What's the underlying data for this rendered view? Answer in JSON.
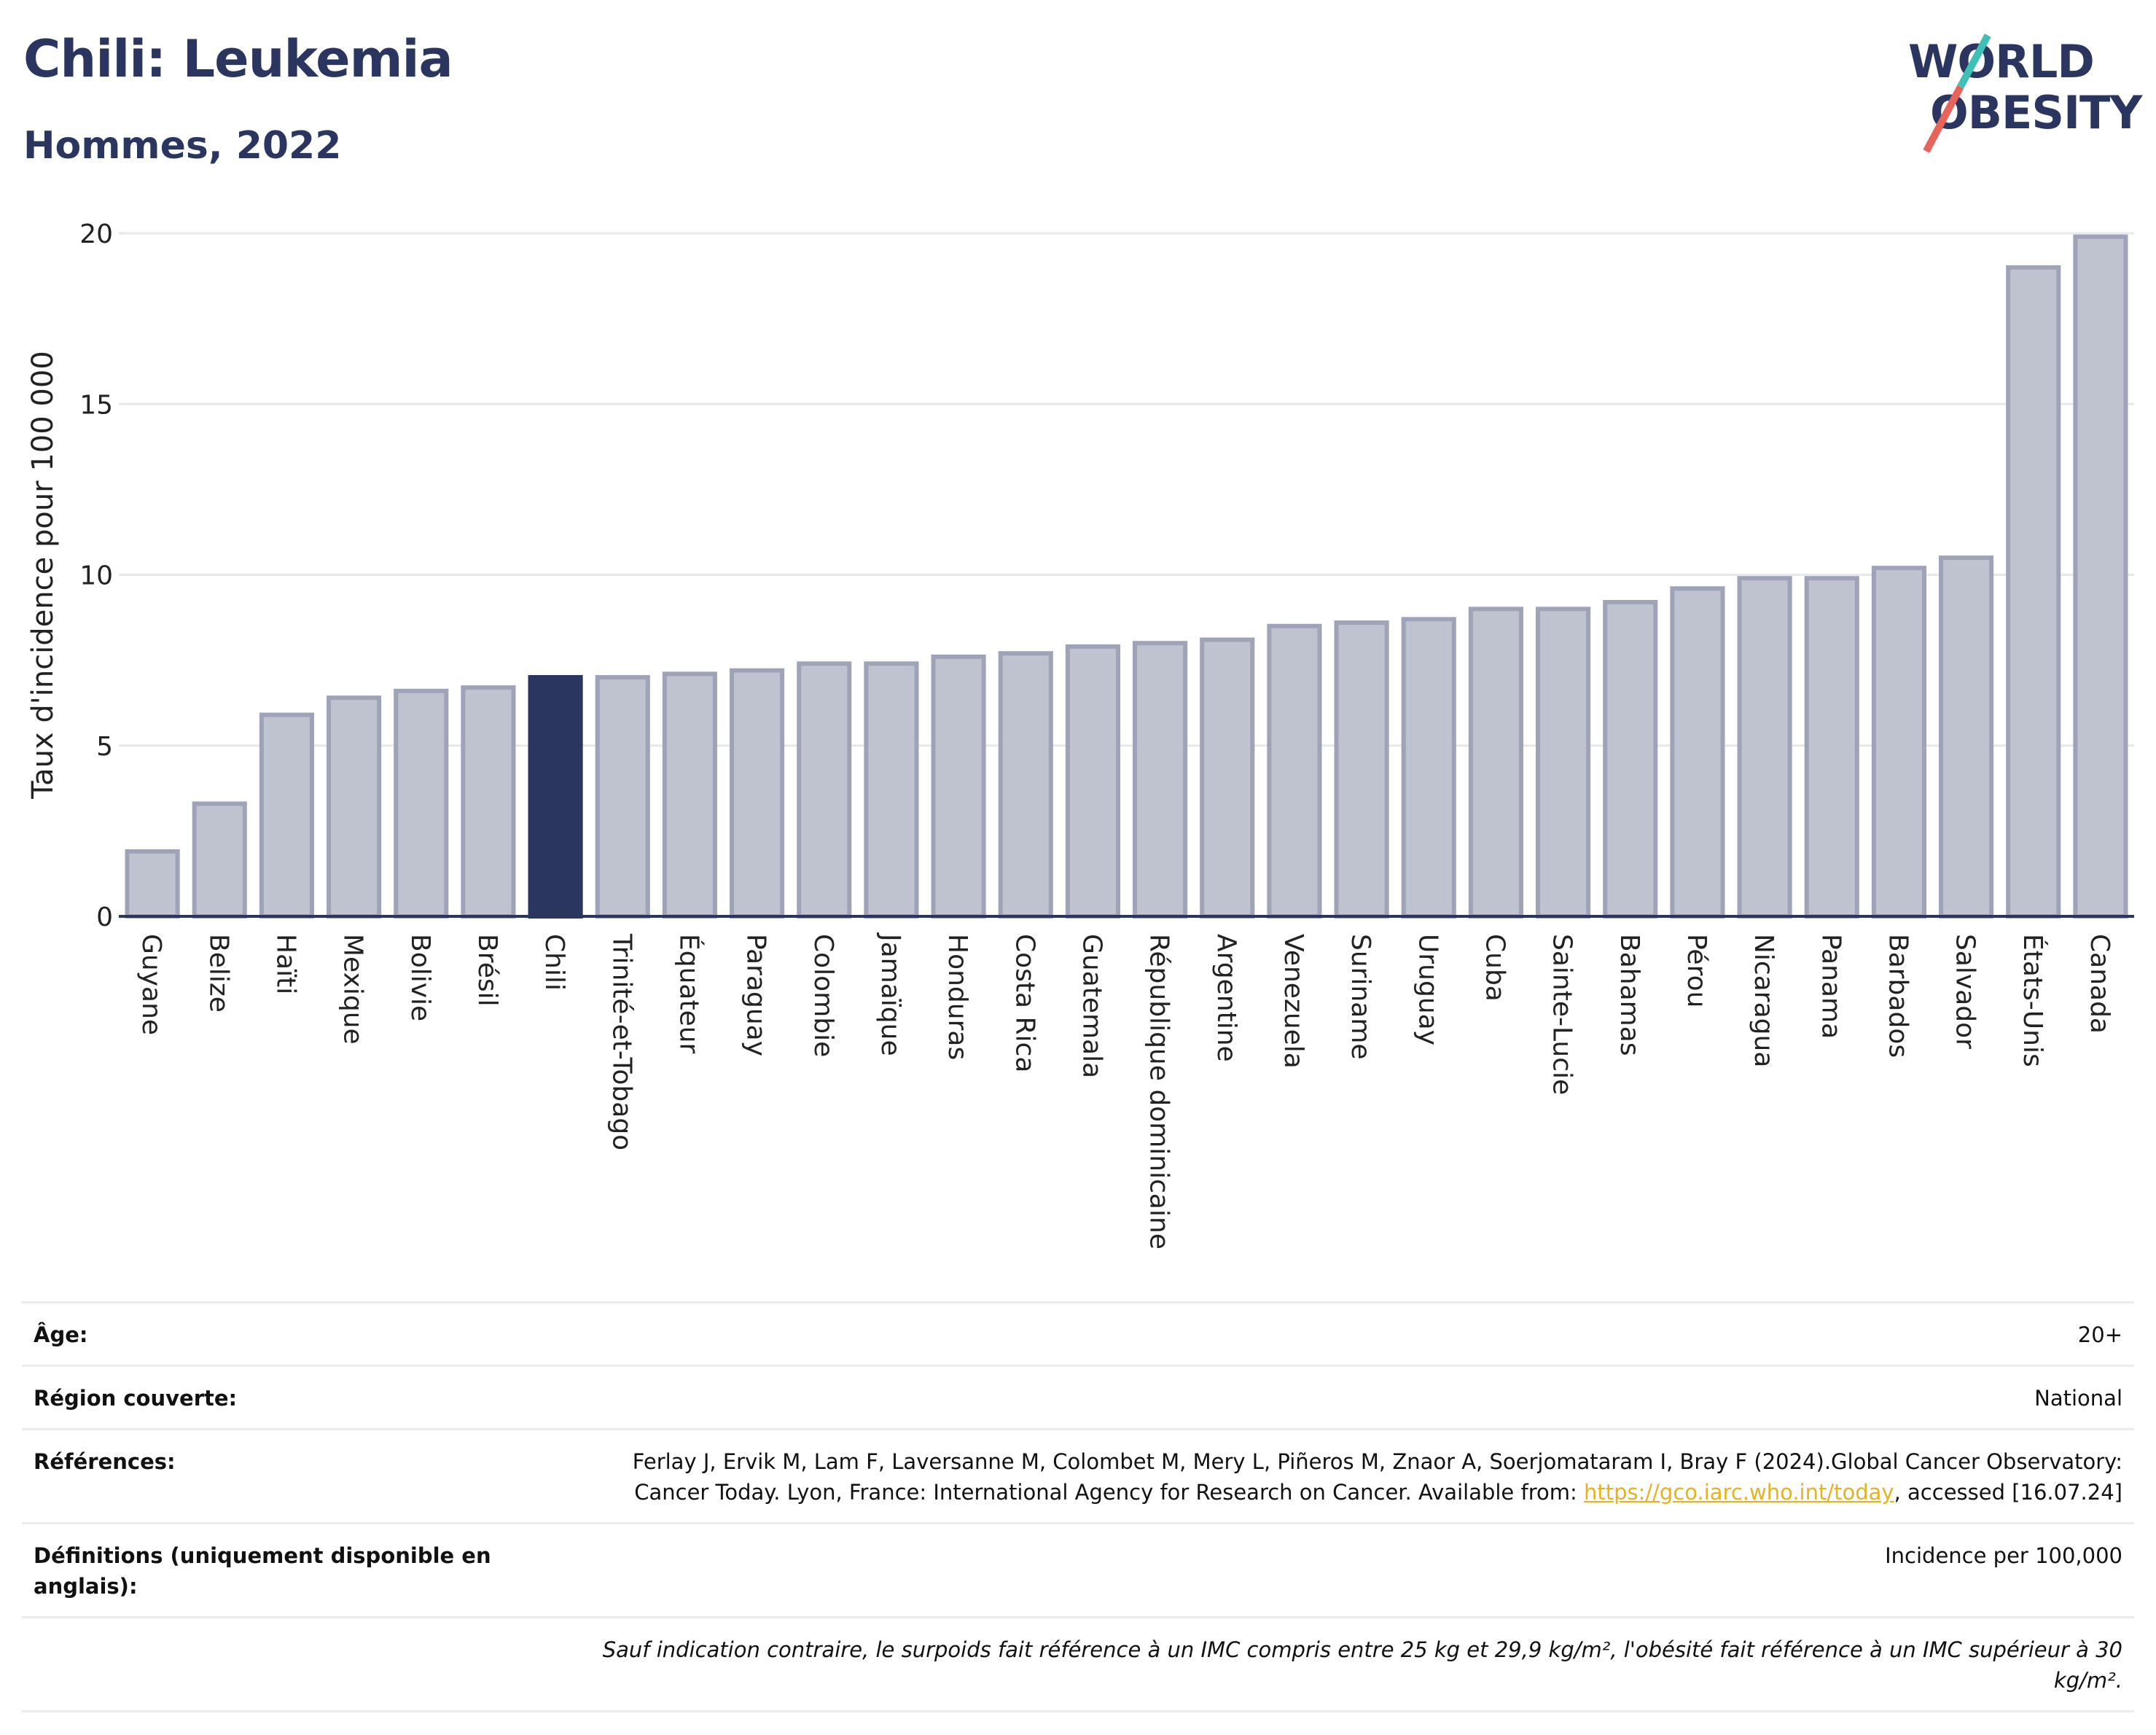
{
  "header": {
    "title": "Chili: Leukemia",
    "subtitle": "Hommes, 2022"
  },
  "logo": {
    "line1": "WORLD",
    "line2": "OBESITY"
  },
  "colors": {
    "highlight": "#2a3560",
    "bar": "#bfc2cf",
    "bar_border": "#9ea3b8",
    "grid": "#e6e8ec",
    "link": "#e5b322"
  },
  "chart_data": {
    "type": "bar",
    "ylabel": "Taux d'incidence pour 100 000",
    "ylim": [
      0,
      20
    ],
    "yticks": [
      0,
      5,
      10,
      15,
      20
    ],
    "grid": true,
    "highlight": "Chili",
    "categories": [
      "Guyane",
      "Belize",
      "Haïti",
      "Mexique",
      "Bolivie",
      "Brésil",
      "Chili",
      "Trinité-et-Tobago",
      "Équateur",
      "Paraguay",
      "Colombie",
      "Jamaïque",
      "Honduras",
      "Costa Rica",
      "Guatemala",
      "République dominicaine",
      "Argentine",
      "Venezuela",
      "Suriname",
      "Uruguay",
      "Cuba",
      "Sainte-Lucie",
      "Bahamas",
      "Pérou",
      "Nicaragua",
      "Panama",
      "Barbados",
      "Salvador",
      "États-Unis",
      "Canada"
    ],
    "values": [
      1.9,
      3.3,
      5.9,
      6.4,
      6.6,
      6.7,
      7.0,
      7.0,
      7.1,
      7.2,
      7.4,
      7.4,
      7.6,
      7.7,
      7.9,
      8.0,
      8.1,
      8.5,
      8.6,
      8.7,
      9.0,
      9.0,
      9.2,
      9.6,
      9.9,
      9.9,
      10.2,
      10.5,
      19.0,
      19.9
    ]
  },
  "info": {
    "age_label": "Âge:",
    "age_value": "20+",
    "region_label": "Région couverte:",
    "region_value": "National",
    "references_label": "Références:",
    "references_text": "Ferlay J, Ervik M, Lam F, Laversanne M, Colombet M, Mery L, Piñeros M, Znaor A, Soerjomataram I, Bray F (2024).Global Cancer Observatory: Cancer Today. Lyon, France: International Agency for Research on Cancer. Available from:",
    "references_link": "https://gco.iarc.who.int/today",
    "references_after": ", accessed [16.07.24]",
    "definitions_label": "Définitions (uniquement disponible en anglais):",
    "definitions_value": "Incidence per 100,000",
    "footnote": "Sauf indication contraire, le surpoids fait référence à un IMC compris entre 25 kg et 29,9 kg/m², l'obésité fait référence à un IMC supérieur à 30 kg/m²."
  }
}
